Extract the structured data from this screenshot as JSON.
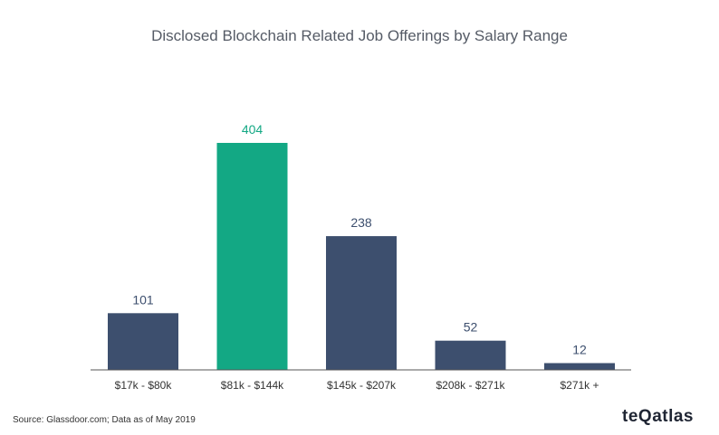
{
  "title": "Disclosed Blockchain Related Job Offerings by Salary Range",
  "source": "Source: Glassdoor.com; Data as of May 2019",
  "brand": "teQatlas",
  "colors": {
    "default_bar": "#3d4f6e",
    "highlight_bar": "#13a884",
    "label_default": "#3d4f6e",
    "label_highlight": "#13a884",
    "axis": "#555555",
    "tick_label": "#333333"
  },
  "chart_data": {
    "type": "bar",
    "title": "Disclosed Blockchain Related Job Offerings by Salary Range",
    "categories": [
      "$17k - $80k",
      "$81k - $144k",
      "$145k - $207k",
      "$208k - $271k",
      "$271k +"
    ],
    "values": [
      101,
      404,
      238,
      52,
      12
    ],
    "data_labels": [
      "101",
      "404",
      "238",
      "52",
      "12"
    ],
    "highlight_index": 1,
    "xlabel": "",
    "ylabel": "",
    "ylim": [
      0,
      404
    ],
    "grid": false,
    "legend": "none"
  }
}
